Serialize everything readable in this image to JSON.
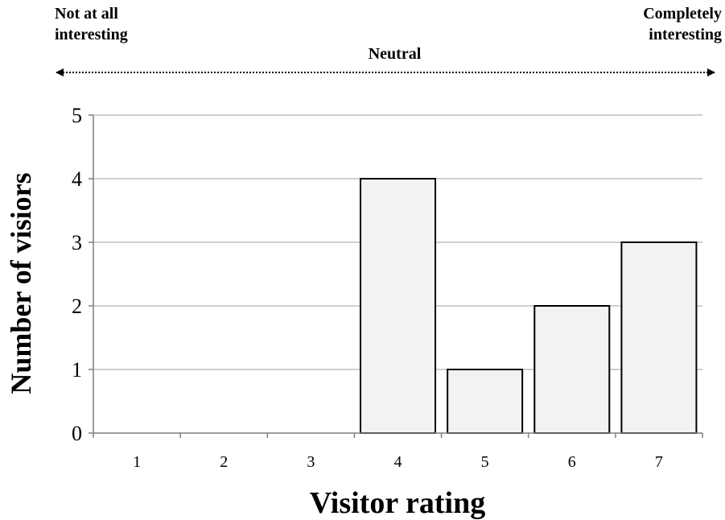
{
  "scale": {
    "left_line1": "Not at all",
    "left_line2": "interesting",
    "middle": "Neutral",
    "right_line1": "Completely",
    "right_line2": "interesting"
  },
  "chart_data": {
    "type": "bar",
    "categories": [
      "1",
      "2",
      "3",
      "4",
      "5",
      "6",
      "7"
    ],
    "values": [
      0,
      0,
      0,
      4,
      1,
      2,
      3
    ],
    "xlabel": "Visitor rating",
    "ylabel": "Number of visiors",
    "ylim": [
      0,
      5
    ],
    "yticks": [
      0,
      1,
      2,
      3,
      4,
      5
    ],
    "grid": true,
    "bar_fill": "#f2f2f2",
    "bar_stroke": "#000000",
    "grid_color": "#bfbfbf"
  }
}
